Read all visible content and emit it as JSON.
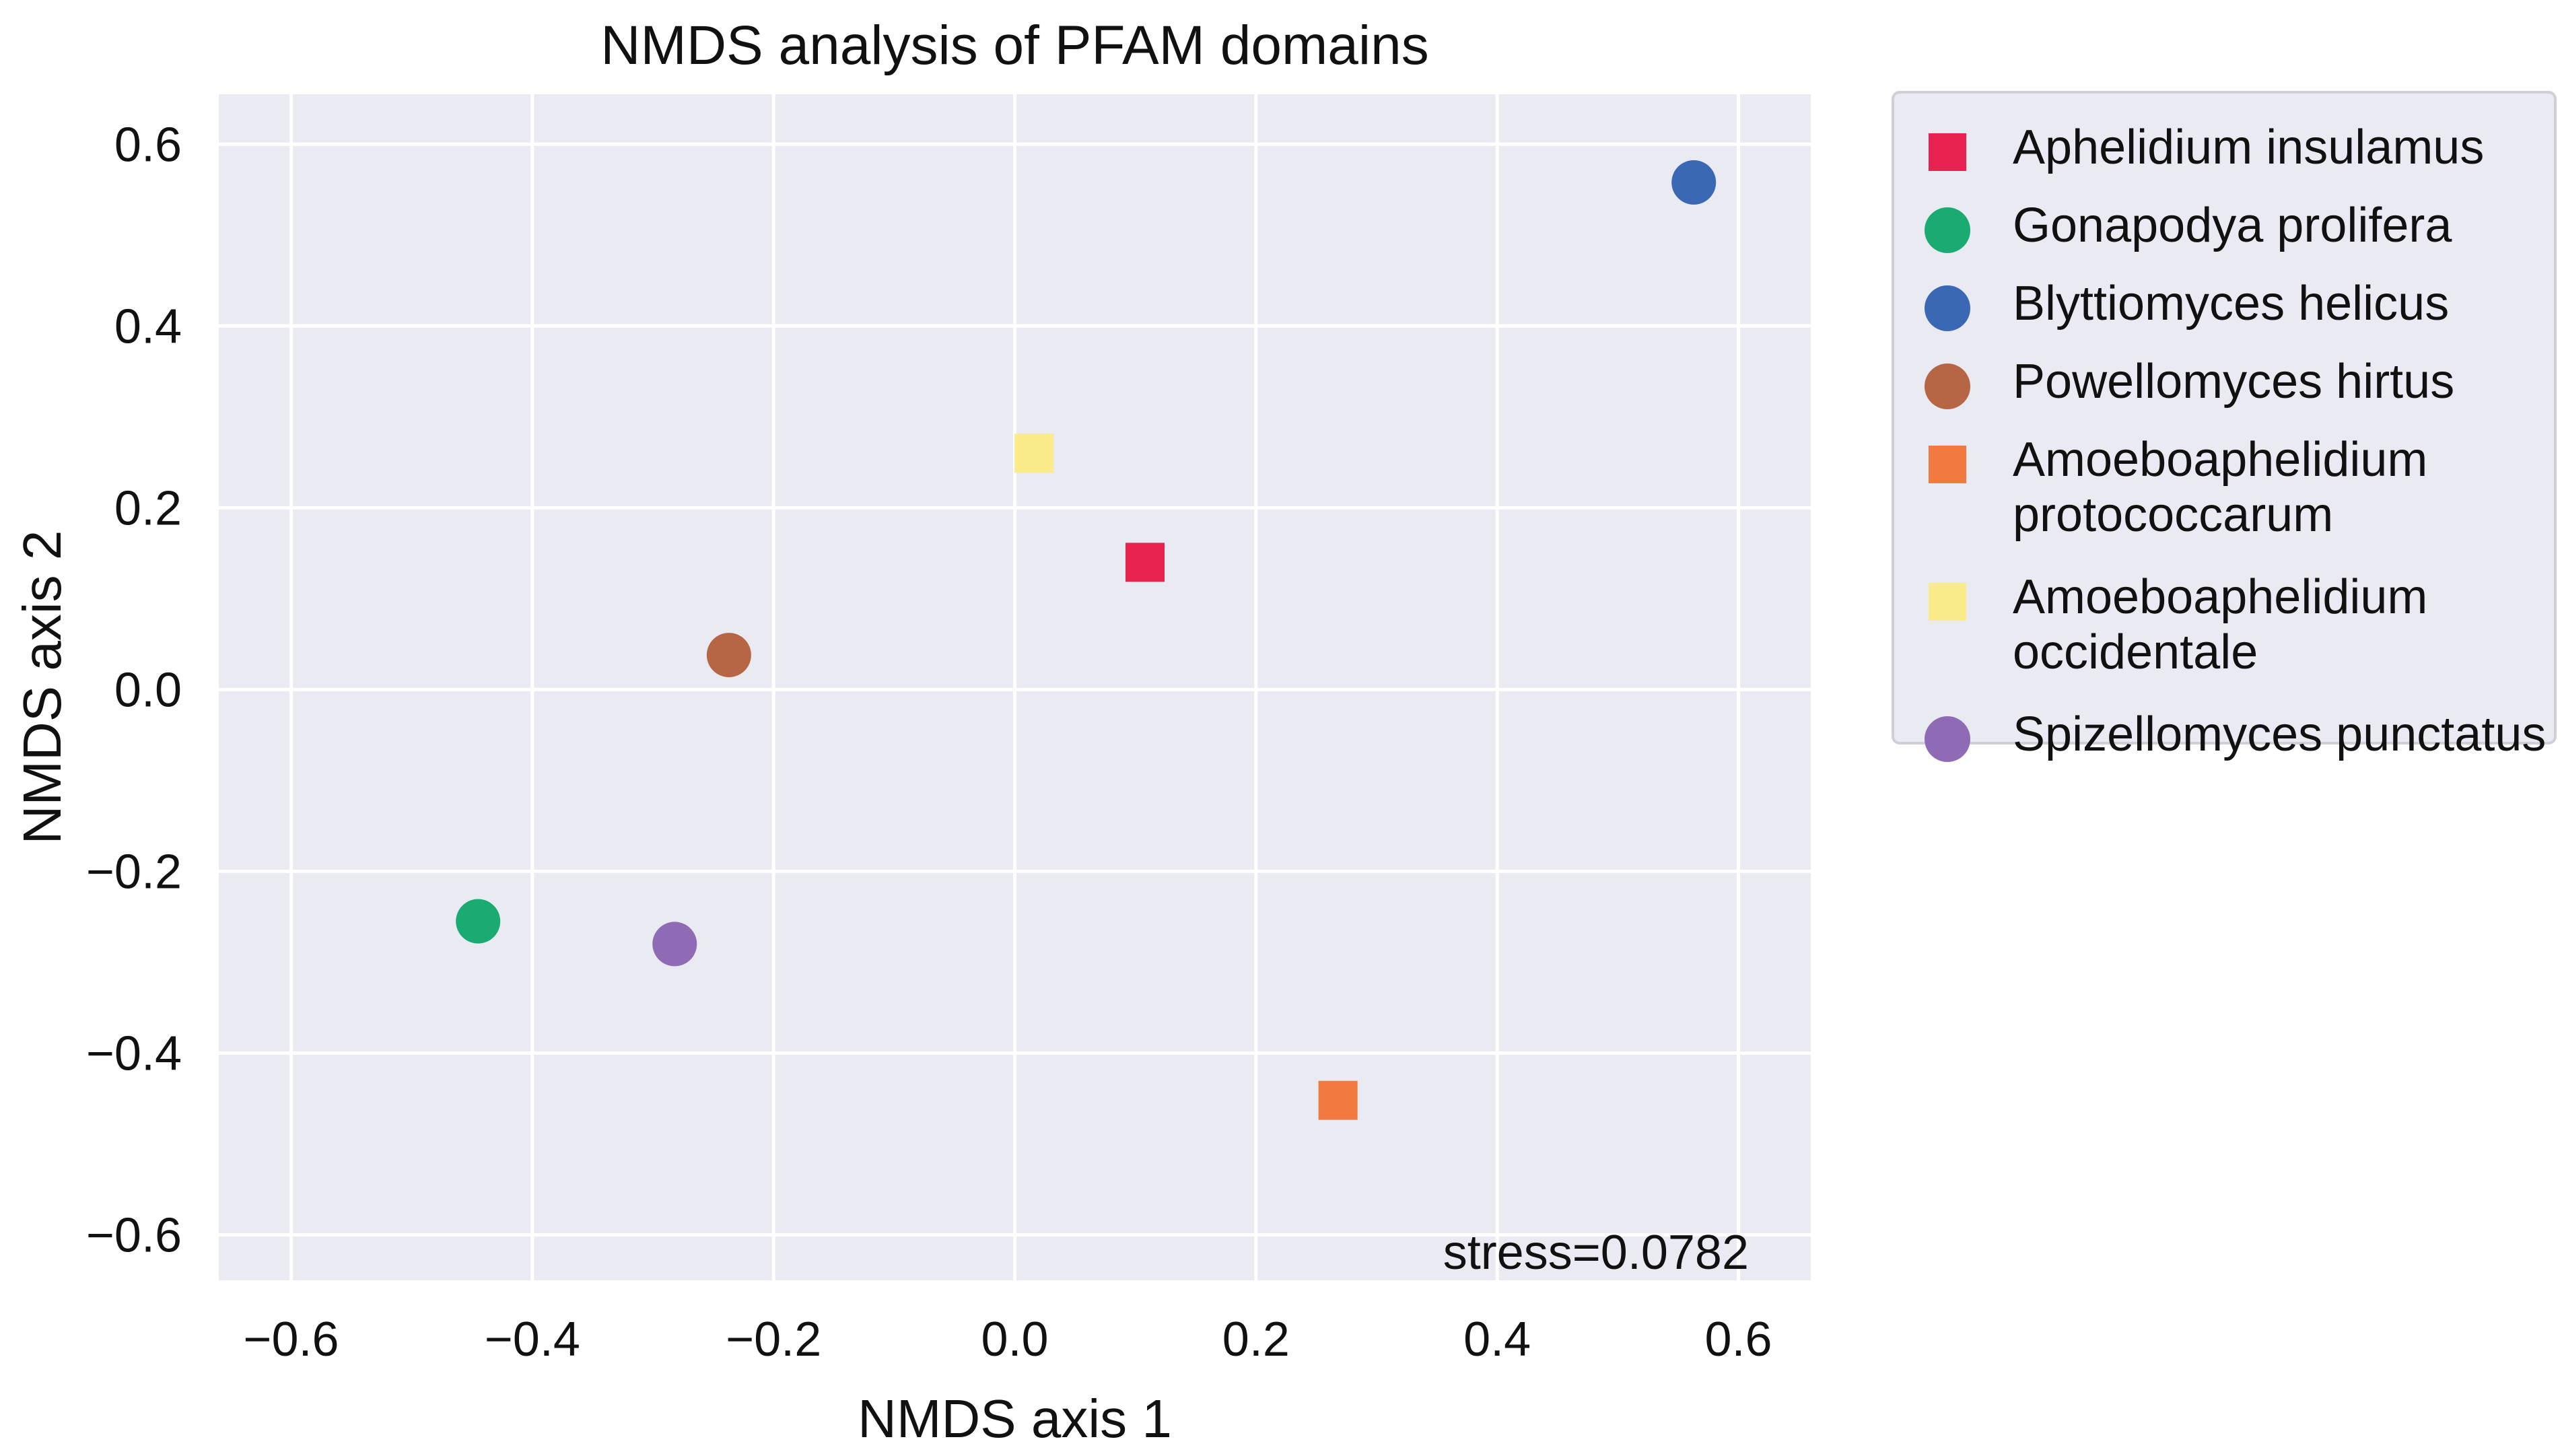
{
  "chart_data": {
    "type": "scatter",
    "title": "NMDS analysis of PFAM domains",
    "xlabel": "NMDS axis 1",
    "ylabel": "NMDS axis 2",
    "xlim": [
      -0.66,
      0.66
    ],
    "ylim": [
      -0.65,
      0.655
    ],
    "xticks": [
      -0.6,
      -0.4,
      -0.2,
      0.0,
      0.2,
      0.4,
      0.6
    ],
    "xtick_labels": [
      "−0.6",
      "−0.4",
      "−0.2",
      "0.0",
      "0.2",
      "0.4",
      "0.6"
    ],
    "yticks": [
      -0.6,
      -0.4,
      -0.2,
      0.0,
      0.2,
      0.4,
      0.6
    ],
    "ytick_labels": [
      "−0.6",
      "−0.4",
      "−0.2",
      "0.0",
      "0.2",
      "0.4",
      "0.6"
    ],
    "grid": true,
    "background": "#eaeaf2",
    "legend_position": "outside-right",
    "annotation": "stress=0.0782",
    "series": [
      {
        "name": "Aphelidium insulamus",
        "marker": "square",
        "color": "#e8234f",
        "x": 0.108,
        "y": 0.14
      },
      {
        "name": "Gonapodya prolifera",
        "marker": "circle",
        "color": "#1aab72",
        "x": -0.445,
        "y": -0.255
      },
      {
        "name": "Blyttiomyces helicus",
        "marker": "circle",
        "color": "#3a68b5",
        "x": 0.563,
        "y": 0.558
      },
      {
        "name": "Powellomyces hirtus",
        "marker": "circle",
        "color": "#b66545",
        "x": -0.237,
        "y": 0.038
      },
      {
        "name": "Amoeboaphelidium protococcarum",
        "legend_lines": [
          "Amoeboaphelidium",
          "protococcarum"
        ],
        "marker": "square",
        "color": "#f07a3f",
        "x": 0.268,
        "y": -0.452
      },
      {
        "name": "Amoeboaphelidium occidentale",
        "legend_lines": [
          "Amoeboaphelidium",
          "occidentale"
        ],
        "marker": "square",
        "color": "#faeb8a",
        "x": 0.016,
        "y": 0.26
      },
      {
        "name": "Spizellomyces punctatus",
        "marker": "circle",
        "color": "#8f6bb5",
        "x": -0.282,
        "y": -0.28
      }
    ]
  }
}
